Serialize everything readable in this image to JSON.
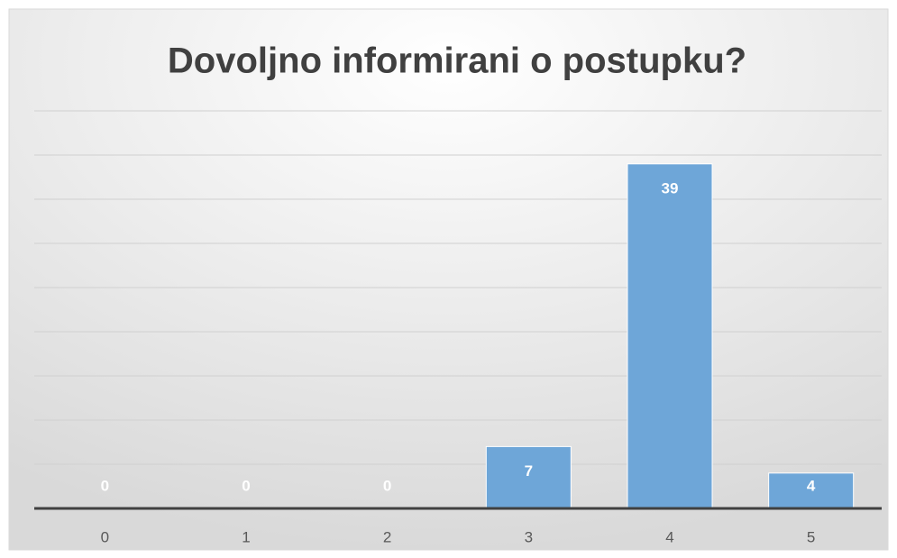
{
  "chart_data": {
    "type": "bar",
    "title": "Dovoljno informirani o postupku?",
    "categories": [
      "0",
      "1",
      "2",
      "3",
      "4",
      "5"
    ],
    "values": [
      0,
      0,
      0,
      7,
      39,
      4
    ],
    "color": "#6ea6d8",
    "ylim": [
      0,
      45
    ],
    "yticks": [
      0,
      5,
      10,
      15,
      20,
      25,
      30,
      35,
      40,
      45
    ],
    "grid": true,
    "data_labels": true
  }
}
